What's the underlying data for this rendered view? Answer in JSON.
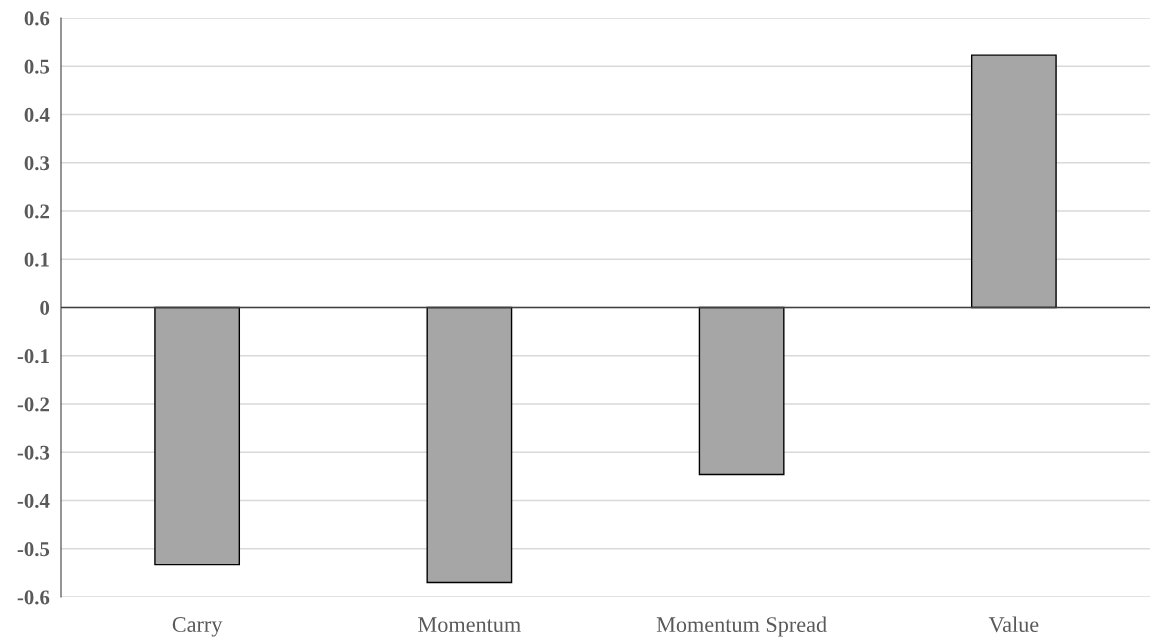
{
  "chart_data": {
    "type": "bar",
    "categories": [
      "Carry",
      "Momentum",
      "Momentum Spread",
      "Value"
    ],
    "values": [
      -0.533,
      -0.57,
      -0.346,
      0.523
    ],
    "color": "#a6a6a6",
    "ylim": [
      -0.6,
      0.6
    ],
    "yticks": [
      -0.6,
      -0.5,
      -0.4,
      -0.3,
      -0.2,
      -0.1,
      0,
      0.1,
      0.2,
      0.3,
      0.4,
      0.5,
      0.6
    ],
    "grid": "y",
    "legend": false
  }
}
